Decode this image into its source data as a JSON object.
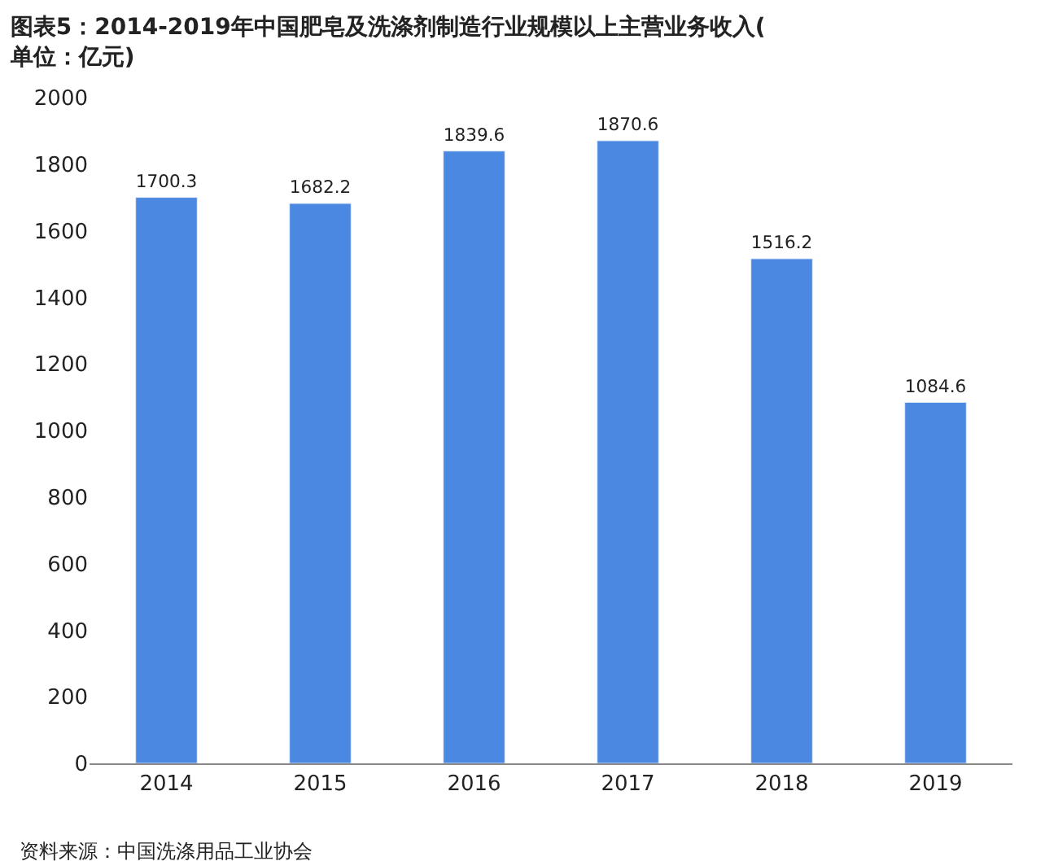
{
  "chart_data": {
    "type": "bar",
    "title": "图表5：2014-2019年中国肥皂及洗涤剂制造行业规模以上主营业务收入(单位：亿元)",
    "categories": [
      "2014",
      "2015",
      "2016",
      "2017",
      "2018",
      "2019"
    ],
    "values": [
      1700.3,
      1682.2,
      1839.6,
      1870.6,
      1516.2,
      1084.6
    ],
    "color": "#4a88e2",
    "data_labels": true,
    "grid": false,
    "legend": false,
    "ylim": [
      0,
      2000
    ],
    "yticks": [
      0,
      200,
      400,
      600,
      800,
      1000,
      1200,
      1400,
      1600,
      1800,
      2000
    ],
    "annotations": [
      "资料来源：中国洗涤用品工业协会"
    ]
  }
}
